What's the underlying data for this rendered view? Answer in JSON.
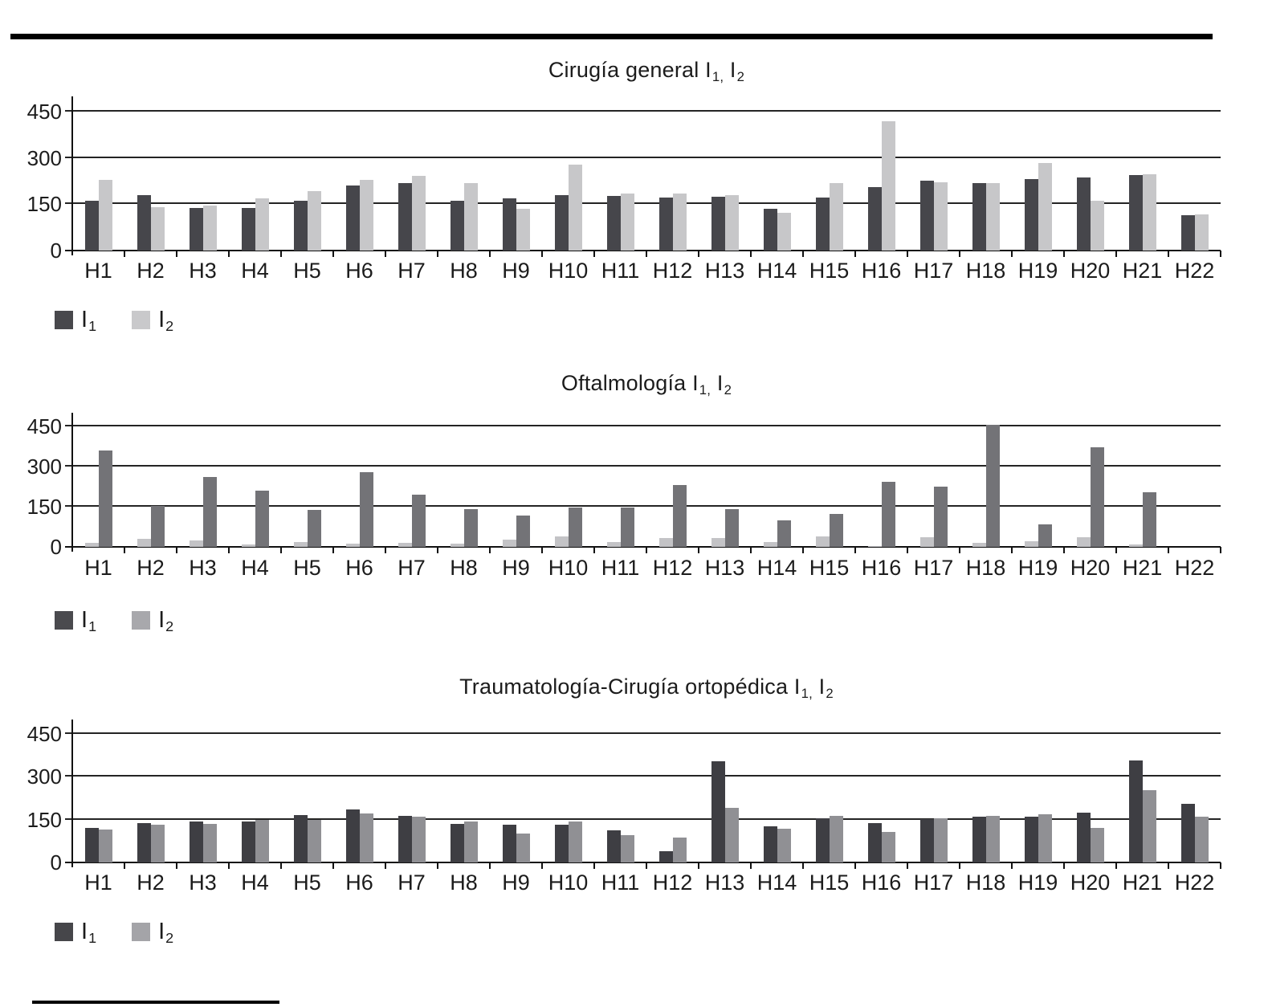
{
  "decor": {
    "top_rule_color": "#000000",
    "footnote_rule_color": "#000000"
  },
  "chart_data": [
    {
      "type": "bar",
      "title": "Cirugía general I1,I2",
      "title_parts": [
        {
          "text": "Cirugía general I"
        },
        {
          "sub": "1,"
        },
        {
          "text": " I"
        },
        {
          "sub": "2"
        }
      ],
      "categories": [
        "H1",
        "H2",
        "H3",
        "H4",
        "H5",
        "H6",
        "H7",
        "H8",
        "H9",
        "H10",
        "H11",
        "H12",
        "H13",
        "H14",
        "H15",
        "H16",
        "H17",
        "H18",
        "H19",
        "H20",
        "H21",
        "H22"
      ],
      "series": [
        {
          "name": "I1",
          "color": "#46464b",
          "values": [
            162,
            180,
            139,
            138,
            162,
            211,
            219,
            162,
            169,
            180,
            178,
            172,
            174,
            135,
            172,
            207,
            226,
            218,
            233,
            238,
            245,
            115
          ]
        },
        {
          "name": "I2",
          "color": "#c7c7c9",
          "values": [
            230,
            141,
            147,
            169,
            193,
            230,
            241,
            219,
            136,
            278,
            185,
            186,
            180,
            123,
            220,
            419,
            221,
            220,
            285,
            162,
            248,
            118
          ]
        }
      ],
      "legend": [
        {
          "base": "I",
          "sub": "1",
          "color": "#48484c"
        },
        {
          "base": "I",
          "sub": "2",
          "color": "#c9c9cb"
        }
      ],
      "y_ticks": [
        450,
        300,
        150,
        0
      ],
      "ymax": 500,
      "ylim": [
        0,
        500
      ],
      "grid": true,
      "legend_position": "bottom-left",
      "xlabel": "",
      "ylabel": ""
    },
    {
      "type": "bar",
      "title": "Oftalmología I1,I2",
      "title_parts": [
        {
          "text": "Oftalmología I"
        },
        {
          "sub": "1,"
        },
        {
          "text": " I"
        },
        {
          "sub": "2"
        }
      ],
      "categories": [
        "H1",
        "H2",
        "H3",
        "H4",
        "H5",
        "H6",
        "H7",
        "H8",
        "H9",
        "H10",
        "H11",
        "H12",
        "H13",
        "H14",
        "H15",
        "H16",
        "H17",
        "H18",
        "H19",
        "H20",
        "H21",
        "H22"
      ],
      "series": [
        {
          "name": "I2",
          "color": "#c3c3c6",
          "values": [
            15,
            30,
            25,
            8,
            18,
            12,
            15,
            12,
            28,
            40,
            18,
            33,
            33,
            18,
            38,
            4,
            35,
            15,
            22,
            35,
            8,
            0
          ]
        },
        {
          "name": "I1",
          "color": "#737377",
          "values": [
            360,
            152,
            260,
            210,
            138,
            278,
            195,
            140,
            117,
            147,
            147,
            232,
            140,
            100,
            122,
            243,
            225,
            455,
            85,
            370,
            205,
            0
          ]
        }
      ],
      "legend": [
        {
          "base": "I",
          "sub": "1",
          "color": "#4a4a4e"
        },
        {
          "base": "I",
          "sub": "2",
          "color": "#a8a8ac"
        }
      ],
      "y_ticks": [
        450,
        300,
        150,
        0
      ],
      "ymax": 500,
      "ylim": [
        0,
        500
      ],
      "grid": true,
      "legend_position": "bottom-left",
      "xlabel": "",
      "ylabel": ""
    },
    {
      "type": "bar",
      "title": "Traumatología-Cirugía ortopédica I1,I2",
      "title_parts": [
        {
          "text": "Traumatología-Cirugía ortopédica I"
        },
        {
          "sub": "1,"
        },
        {
          "text": " I"
        },
        {
          "sub": "2"
        }
      ],
      "categories": [
        "H1",
        "H2",
        "H3",
        "H4",
        "H5",
        "H6",
        "H7",
        "H8",
        "H9",
        "H10",
        "H11",
        "H12",
        "H13",
        "H14",
        "H15",
        "H16",
        "H17",
        "H18",
        "H19",
        "H20",
        "H21",
        "H22"
      ],
      "series": [
        {
          "name": "I1",
          "color": "#3e3e43",
          "values": [
            122,
            137,
            142,
            142,
            165,
            185,
            163,
            135,
            131,
            131,
            113,
            40,
            355,
            127,
            154,
            137,
            152,
            160,
            160,
            174,
            358,
            205
          ]
        },
        {
          "name": "I2",
          "color": "#909094",
          "values": [
            115,
            132,
            135,
            150,
            150,
            172,
            161,
            143,
            100,
            143,
            96,
            87,
            190,
            117,
            163,
            108,
            155,
            162,
            168,
            122,
            253,
            160
          ]
        }
      ],
      "legend": [
        {
          "base": "I",
          "sub": "1",
          "color": "#46464a"
        },
        {
          "base": "I",
          "sub": "2",
          "color": "#a4a4a8"
        }
      ],
      "y_ticks": [
        450,
        300,
        150,
        0
      ],
      "ymax": 500,
      "ylim": [
        0,
        500
      ],
      "grid": true,
      "legend_position": "bottom-left",
      "xlabel": "",
      "ylabel": ""
    }
  ]
}
